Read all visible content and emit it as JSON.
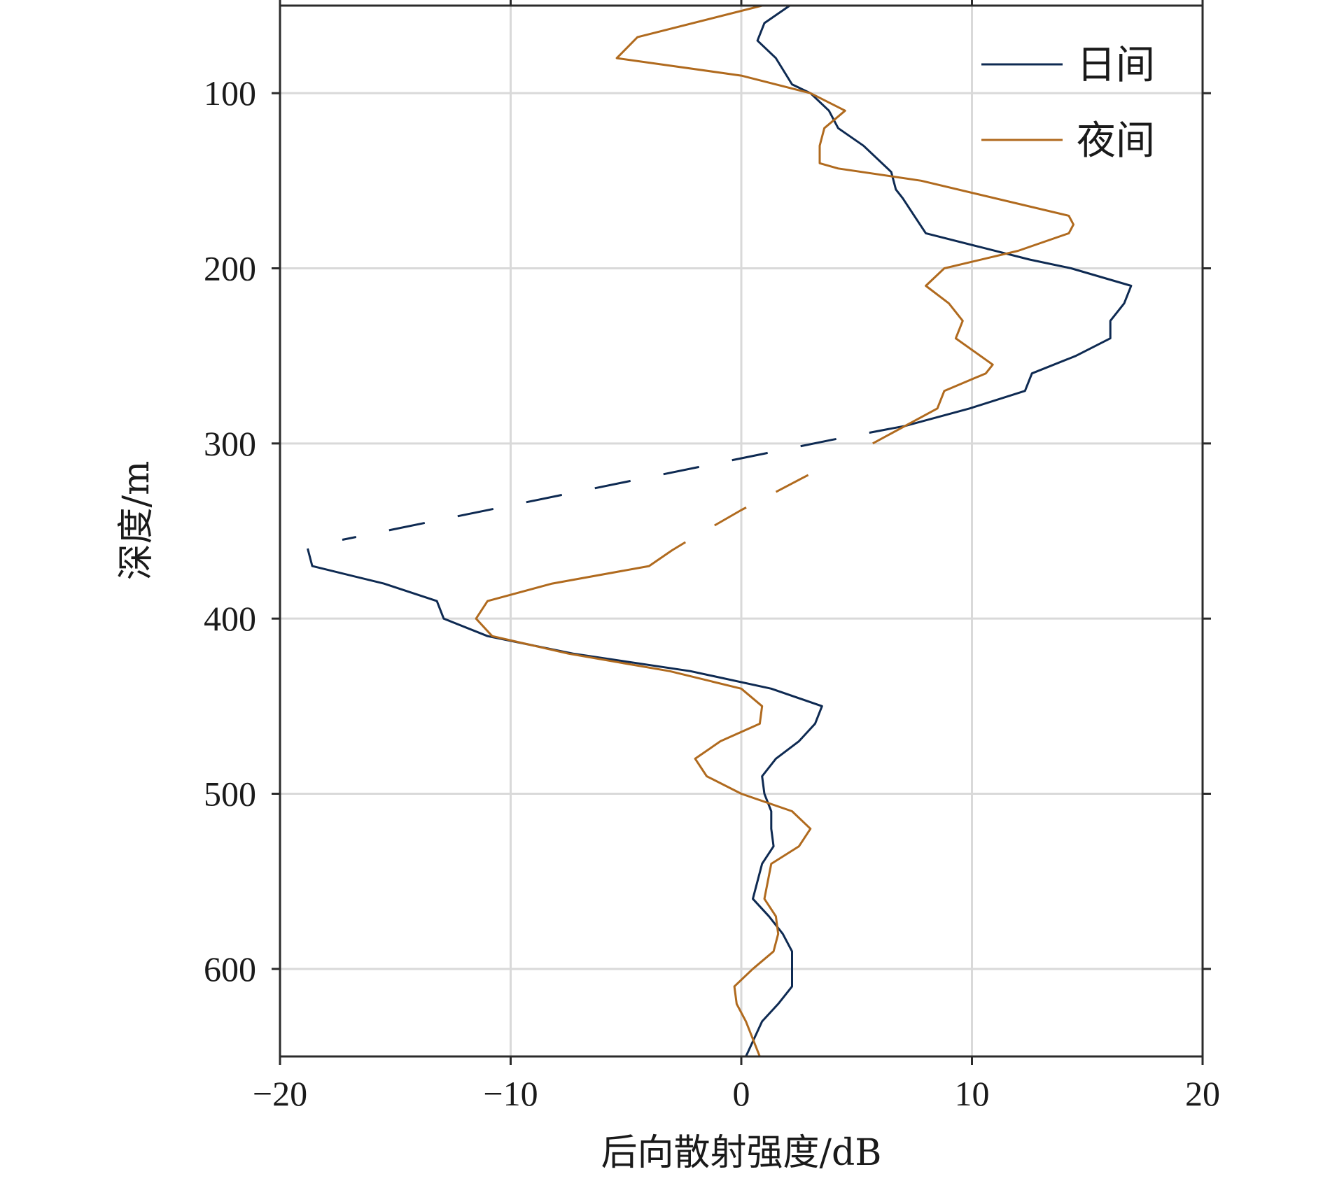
{
  "chart_data": {
    "type": "line",
    "xlabel": "后向散射强度/dB",
    "ylabel": "深度/m",
    "xlim": [
      -20,
      20
    ],
    "ylim": [
      50,
      650
    ],
    "y_inverted": true,
    "grid": true,
    "xticks": [
      -20,
      -10,
      0,
      10,
      20
    ],
    "xtick_labels": [
      "−20",
      "−10",
      "0",
      "10",
      "20"
    ],
    "yticks": [
      100,
      200,
      300,
      400,
      500,
      600
    ],
    "ytick_labels": [
      "100",
      "200",
      "300",
      "400",
      "500",
      "600"
    ],
    "legend": {
      "position": "top-right"
    },
    "series": [
      {
        "name": "日间",
        "color": "#0e2a52",
        "segments": [
          {
            "style": "solid",
            "x": [
              2.1,
              1.0,
              0.7,
              1.5,
              2.2,
              3.0,
              3.8,
              4.2,
              5.3,
              6.5,
              6.7,
              7.0,
              7.5,
              8.0,
              12.5,
              14.3,
              16.9,
              16.6,
              16.0,
              16.0,
              14.5,
              12.6,
              12.3,
              9.9,
              7.1
            ],
            "y": [
              50,
              60,
              70,
              80,
              95,
              100,
              110,
              120,
              130,
              145,
              155,
              160,
              170,
              180,
              195,
              200,
              210,
              220,
              230,
              240,
              250,
              260,
              270,
              280,
              290
            ]
          },
          {
            "style": "dashed",
            "x": [
              7.1,
              3.9,
              -17.3
            ],
            "y": [
              290,
              298,
              355
            ]
          },
          {
            "style": "solid",
            "x": [
              -18.8,
              -18.6,
              -15.5,
              -13.2,
              -12.9,
              -11.0,
              -7.3,
              -2.2,
              1.3,
              3.5,
              3.2,
              2.5,
              1.5,
              0.9,
              1.0,
              1.3,
              1.3,
              1.4,
              0.9,
              0.5,
              1.2,
              1.8,
              2.2,
              2.2,
              1.6,
              0.9,
              0.2
            ],
            "y": [
              360,
              370,
              380,
              390,
              400,
              410,
              420,
              430,
              440,
              450,
              460,
              470,
              480,
              490,
              500,
              510,
              520,
              530,
              540,
              560,
              570,
              580,
              590,
              610,
              620,
              630,
              650
            ]
          }
        ]
      },
      {
        "name": "夜间",
        "color": "#b06a1e",
        "segments": [
          {
            "style": "solid",
            "x": [
              0.9,
              -4.5,
              -5.4,
              0.0,
              3.0,
              4.5,
              3.6,
              3.4,
              3.4,
              4.2,
              7.8,
              14.2,
              14.4,
              14.2,
              12.0,
              8.8,
              8.0,
              9.0,
              9.6,
              9.3,
              10.9,
              10.6,
              8.8,
              8.5,
              5.7
            ],
            "y": [
              50,
              68,
              80,
              90,
              100,
              110,
              120,
              130,
              140,
              143,
              150,
              170,
              175,
              180,
              190,
              200,
              210,
              220,
              230,
              240,
              255,
              260,
              270,
              280,
              300
            ]
          },
          {
            "style": "dashed",
            "x": [
              2.9,
              0.0,
              -2.5
            ],
            "y": [
              318,
              338,
              357
            ]
          },
          {
            "style": "solid",
            "x": [
              -2.5,
              -3.0,
              -4.0,
              -8.2,
              -11.0,
              -11.5,
              -10.8,
              -7.5,
              -3.1,
              0.0,
              0.9,
              0.8,
              -0.9,
              -2.0,
              -1.5,
              0.0,
              2.2,
              3.0,
              2.5,
              1.3,
              1.0,
              1.5,
              1.6,
              1.4,
              0.5,
              -0.3,
              -0.2,
              0.2,
              0.8
            ],
            "y": [
              357,
              361,
              370,
              380,
              390,
              400,
              410,
              420,
              430,
              440,
              450,
              460,
              470,
              480,
              490,
              500,
              510,
              520,
              530,
              540,
              560,
              570,
              580,
              590,
              600,
              610,
              620,
              630,
              650
            ]
          }
        ]
      }
    ]
  }
}
